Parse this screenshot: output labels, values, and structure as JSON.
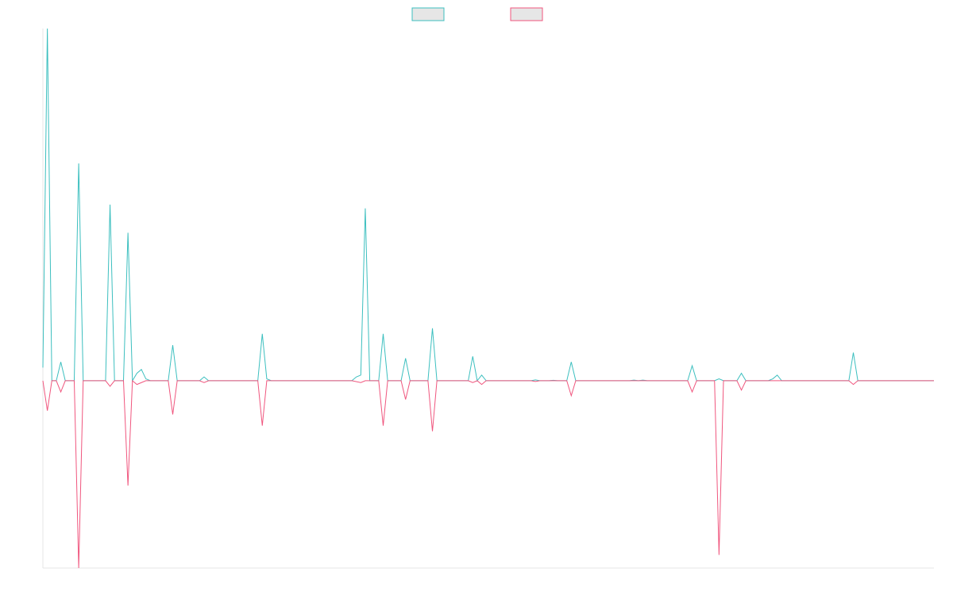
{
  "chart_data": {
    "type": "line",
    "title": "",
    "xlabel": "",
    "ylabel": "",
    "grid": false,
    "legend_position": "top-center",
    "ylim": [
      -100,
      188
    ],
    "x_count": 200,
    "baseline_value": 0,
    "series": [
      {
        "color": "#3cbfbf",
        "fill": "#e6e6e6",
        "points": [
          [
            0,
            7
          ],
          [
            1,
            188
          ],
          [
            2,
            0
          ],
          [
            3,
            0
          ],
          [
            4,
            10
          ],
          [
            5,
            0
          ],
          [
            6,
            0
          ],
          [
            7,
            0
          ],
          [
            8,
            116
          ],
          [
            9,
            0
          ],
          [
            14,
            0
          ],
          [
            15,
            94
          ],
          [
            16,
            0
          ],
          [
            18,
            0
          ],
          [
            19,
            79
          ],
          [
            20,
            0
          ],
          [
            21,
            4
          ],
          [
            22,
            6
          ],
          [
            23,
            1
          ],
          [
            24,
            0
          ],
          [
            28,
            0
          ],
          [
            29,
            19
          ],
          [
            30,
            0
          ],
          [
            35,
            0
          ],
          [
            36,
            2
          ],
          [
            37,
            0
          ],
          [
            48,
            0
          ],
          [
            49,
            25
          ],
          [
            50,
            1
          ],
          [
            51,
            0
          ],
          [
            69,
            0
          ],
          [
            70,
            2
          ],
          [
            71,
            3
          ],
          [
            72,
            92
          ],
          [
            73,
            0
          ],
          [
            75,
            0
          ],
          [
            76,
            25
          ],
          [
            77,
            0
          ],
          [
            80,
            0
          ],
          [
            81,
            12
          ],
          [
            82,
            0
          ],
          [
            86,
            0
          ],
          [
            87,
            28
          ],
          [
            88,
            0
          ],
          [
            95,
            0
          ],
          [
            96,
            13
          ],
          [
            97,
            0
          ],
          [
            98,
            3
          ],
          [
            99,
            0
          ],
          [
            109,
            0
          ],
          [
            110,
            0.4
          ],
          [
            111,
            0
          ],
          [
            113,
            0
          ],
          [
            114,
            0.2
          ],
          [
            115,
            0
          ],
          [
            117,
            0
          ],
          [
            118,
            10
          ],
          [
            119,
            0
          ],
          [
            131,
            0
          ],
          [
            132,
            0.3
          ],
          [
            133,
            0
          ],
          [
            134,
            0.3
          ],
          [
            135,
            0
          ],
          [
            144,
            0
          ],
          [
            145,
            8
          ],
          [
            146,
            0
          ],
          [
            150,
            0
          ],
          [
            151,
            1
          ],
          [
            152,
            0
          ],
          [
            155,
            0
          ],
          [
            156,
            4
          ],
          [
            157,
            0
          ],
          [
            162,
            0
          ],
          [
            163,
            1
          ],
          [
            164,
            3
          ],
          [
            165,
            0
          ],
          [
            180,
            0
          ],
          [
            181,
            15
          ],
          [
            182,
            0
          ],
          [
            199,
            0
          ]
        ]
      },
      {
        "color": "#f0567e",
        "fill": "#e6e6e6",
        "points": [
          [
            0,
            0
          ],
          [
            1,
            -16
          ],
          [
            2,
            0
          ],
          [
            3,
            0
          ],
          [
            4,
            -6
          ],
          [
            5,
            0
          ],
          [
            6,
            0
          ],
          [
            7,
            0
          ],
          [
            8,
            -100
          ],
          [
            9,
            0
          ],
          [
            14,
            0
          ],
          [
            15,
            -3
          ],
          [
            16,
            0
          ],
          [
            18,
            0
          ],
          [
            19,
            -56
          ],
          [
            20,
            0
          ],
          [
            21,
            -2
          ],
          [
            22,
            -1
          ],
          [
            23,
            0
          ],
          [
            28,
            0
          ],
          [
            29,
            -18
          ],
          [
            30,
            0
          ],
          [
            35,
            0
          ],
          [
            36,
            -1
          ],
          [
            37,
            0
          ],
          [
            48,
            0
          ],
          [
            49,
            -24
          ],
          [
            50,
            0
          ],
          [
            69,
            0
          ],
          [
            71,
            -1
          ],
          [
            72,
            0
          ],
          [
            75,
            0
          ],
          [
            76,
            -24
          ],
          [
            77,
            0
          ],
          [
            80,
            0
          ],
          [
            81,
            -10
          ],
          [
            82,
            0
          ],
          [
            86,
            0
          ],
          [
            87,
            -27
          ],
          [
            88,
            0
          ],
          [
            95,
            0
          ],
          [
            96,
            -1
          ],
          [
            97,
            0
          ],
          [
            98,
            -2
          ],
          [
            99,
            0
          ],
          [
            109,
            0
          ],
          [
            110,
            -0.4
          ],
          [
            111,
            0
          ],
          [
            117,
            0
          ],
          [
            118,
            -8
          ],
          [
            119,
            0
          ],
          [
            144,
            0
          ],
          [
            145,
            -6
          ],
          [
            146,
            0
          ],
          [
            150,
            0
          ],
          [
            151,
            -93
          ],
          [
            152,
            0
          ],
          [
            155,
            0
          ],
          [
            156,
            -5
          ],
          [
            157,
            0
          ],
          [
            180,
            0
          ],
          [
            181,
            -2
          ],
          [
            182,
            0
          ],
          [
            199,
            0
          ]
        ]
      }
    ]
  }
}
